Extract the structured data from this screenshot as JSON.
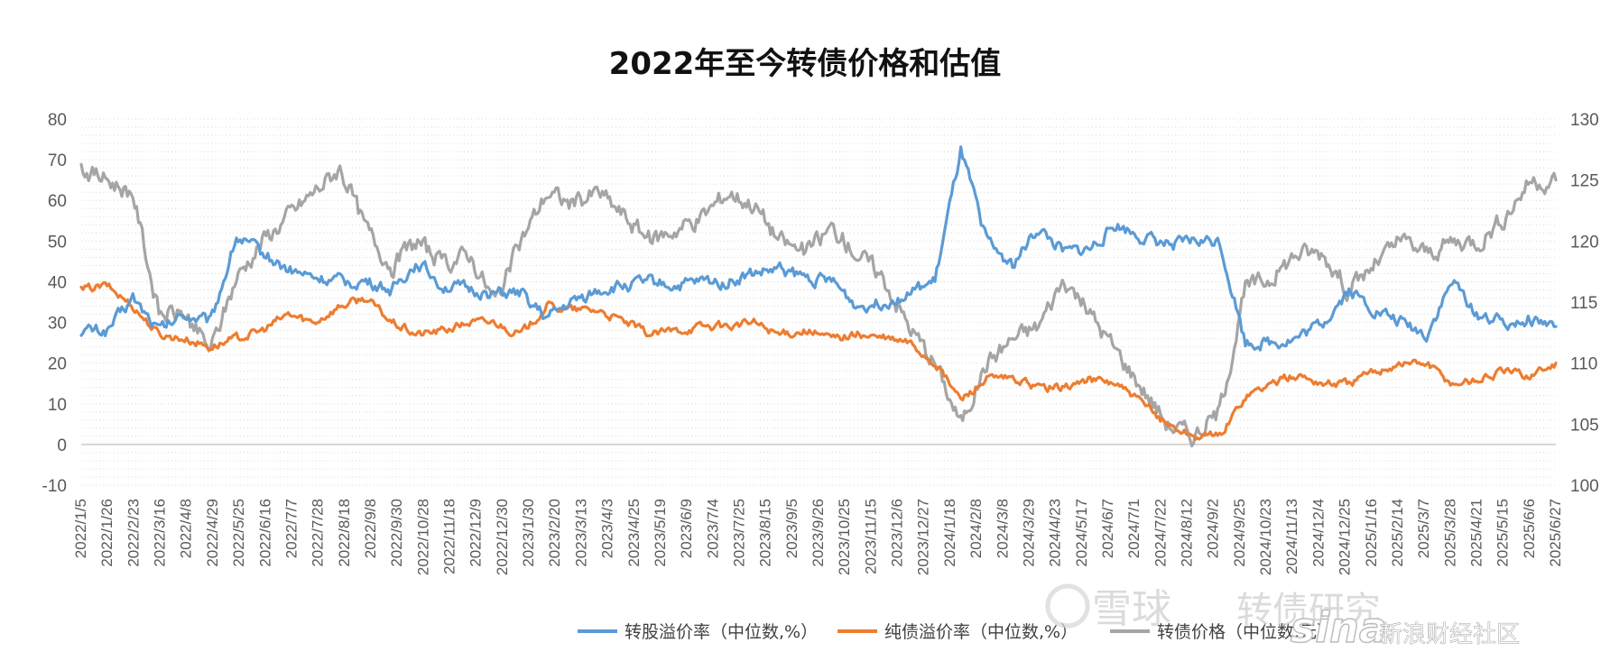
{
  "chart_data": {
    "type": "line",
    "title": "2022年至今转债价格和估值",
    "x_ticks": [
      "2022/1/5",
      "2022/1/26",
      "2022/2/23",
      "2022/3/16",
      "2022/4/8",
      "2022/4/29",
      "2022/5/25",
      "2022/6/16",
      "2022/7/7",
      "2022/7/28",
      "2022/8/18",
      "2022/9/8",
      "2022/9/30",
      "2022/10/28",
      "2022/11/18",
      "2022/12/9",
      "2022/12/30",
      "2023/1/30",
      "2023/2/20",
      "2023/3/13",
      "2023/4/3",
      "2023/4/25",
      "2023/5/19",
      "2023/6/9",
      "2023/7/4",
      "2023/7/25",
      "2023/8/15",
      "2023/9/5",
      "2023/9/26",
      "2023/10/25",
      "2023/11/15",
      "2023/12/6",
      "2023/12/27",
      "2024/1/18",
      "2024/2/8",
      "2024/3/8",
      "2024/3/29",
      "2024/4/23",
      "2024/5/17",
      "2024/6/7",
      "2024/7/1",
      "2024/7/22",
      "2024/8/12",
      "2024/9/2",
      "2024/9/25",
      "2024/10/23",
      "2024/11/13",
      "2024/12/4",
      "2024/12/25",
      "2025/1/16",
      "2025/2/14",
      "2025/3/7",
      "2025/3/28",
      "2025/4/21",
      "2025/5/15",
      "2025/6/6",
      "2025/6/27"
    ],
    "y_left": {
      "min": -10,
      "max": 80,
      "ticks": [
        "-10",
        "0",
        "10",
        "20",
        "30",
        "40",
        "50",
        "60",
        "70",
        "80"
      ]
    },
    "y_right": {
      "min": 100,
      "max": 130,
      "ticks": [
        "100",
        "105",
        "110",
        "115",
        "120",
        "125",
        "130"
      ]
    },
    "series": [
      {
        "name": "转股溢价率（中位数,%）",
        "axis": "left",
        "color": "#5b9bd5",
        "values": [
          28,
          28,
          36,
          28,
          32,
          30,
          51,
          47,
          43,
          41,
          40,
          40,
          38,
          45,
          39,
          38,
          37,
          37,
          31,
          35,
          38,
          39,
          40,
          39,
          40,
          40,
          42,
          43,
          41,
          40,
          34,
          35,
          37,
          40,
          72,
          50,
          44,
          53,
          47,
          48,
          54,
          51,
          49,
          50,
          50,
          25,
          25,
          26,
          30,
          38,
          33,
          30,
          27,
          40,
          32,
          30,
          31,
          29
        ],
        "wiggle": 1.2
      },
      {
        "name": "纯债溢价率（中位数,%）",
        "axis": "left",
        "color": "#ed7d31",
        "values": [
          38,
          39,
          34,
          27,
          26,
          24,
          26,
          28,
          32,
          30,
          34,
          36,
          30,
          27,
          28,
          30,
          30,
          27,
          34,
          33,
          33,
          30,
          27,
          28,
          29,
          29,
          30,
          27,
          28,
          26,
          27,
          26,
          25,
          20,
          11,
          16,
          16,
          14,
          14,
          16,
          15,
          10,
          5,
          2,
          2,
          12,
          15,
          17,
          15,
          15,
          18,
          20,
          20,
          15,
          16,
          18,
          17,
          20
        ],
        "wiggle": 0.8
      },
      {
        "name": "转债价格（中位数,元）",
        "axis": "right",
        "color": "#a5a5a5",
        "values": [
          126,
          125,
          124,
          114,
          114,
          111,
          117,
          120,
          122,
          124,
          126,
          121,
          118,
          120,
          118,
          119,
          115,
          120,
          124,
          123,
          124,
          122,
          120,
          121,
          122,
          124,
          123,
          120,
          119,
          121,
          119,
          117,
          113,
          110,
          105,
          110,
          112,
          113,
          117,
          114,
          111,
          108,
          105,
          104,
          106,
          116,
          117,
          119,
          119,
          116,
          118,
          120,
          119,
          120,
          120,
          122,
          125,
          125
        ],
        "wiggle": 0.6
      }
    ],
    "legend_position": "bottom-center",
    "gridlines": "horizontal-dotted"
  },
  "watermark": {
    "text_left": "雪球",
    "text_mid": "转债研究",
    "logo": "sina",
    "text_right": "新浪财经社区"
  }
}
